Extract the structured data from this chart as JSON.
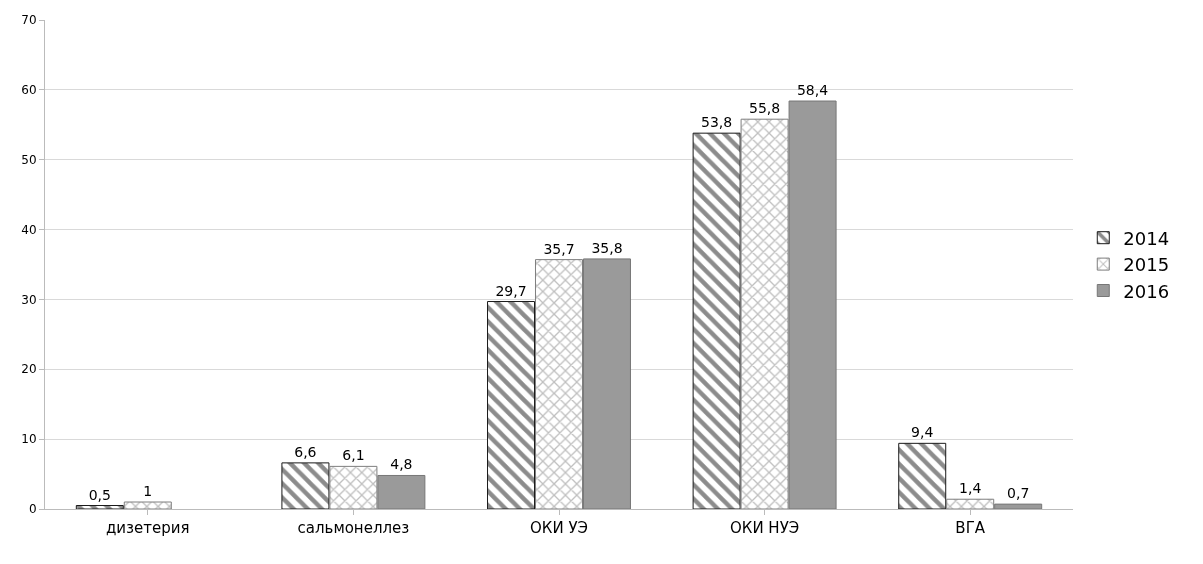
{
  "chart_data": {
    "type": "bar",
    "categories": [
      "дизетерия",
      "сальмонеллез",
      "ОКИ УЭ",
      "ОКИ НУЭ",
      "ВГА"
    ],
    "series": [
      {
        "name": "2014",
        "color": "#1a1a1a",
        "values": [
          0.5,
          6.6,
          29.7,
          53.8,
          9.4
        ],
        "value_labels": [
          "0,5",
          "6,6",
          "29,7",
          "53,8",
          "9,4"
        ]
      },
      {
        "name": "2015",
        "color": "#7f7f7f",
        "values": [
          1,
          6.1,
          35.7,
          55.8,
          1.4
        ],
        "value_labels": [
          "1",
          "6,1",
          "35,7",
          "55,8",
          "1,4"
        ]
      },
      {
        "name": "2016",
        "color": "#9a9a9a",
        "values": [
          null,
          4.8,
          35.8,
          58.4,
          0.7
        ],
        "value_labels": [
          null,
          "4,8",
          "35,8",
          "58,4",
          "0,7"
        ]
      }
    ],
    "ylim": [
      0,
      70
    ],
    "yticks": [
      0,
      10,
      20,
      30,
      40,
      50,
      60,
      70
    ],
    "grid": "y",
    "legend": "right"
  }
}
